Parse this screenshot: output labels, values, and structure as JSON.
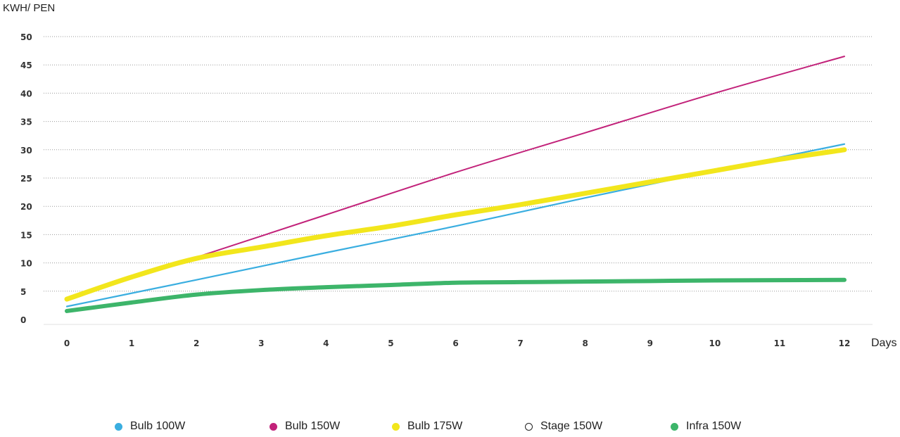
{
  "chart_data": {
    "type": "line",
    "ylabel": "KWH/ PEN",
    "xlabel": "Days",
    "ylim": [
      0,
      50
    ],
    "xlim": [
      0,
      12
    ],
    "y_ticks": [
      "0",
      "5",
      "10",
      "15",
      "20",
      "25",
      "30",
      "35",
      "40",
      "45",
      "50"
    ],
    "x_ticks": [
      "0",
      "1",
      "2",
      "3",
      "4",
      "5",
      "6",
      "7",
      "8",
      "9",
      "10",
      "11",
      "12"
    ],
    "grid": "horizontal dotted",
    "legend_position": "bottom",
    "series": [
      {
        "name": "Bulb 100W",
        "color": "#3aaee0",
        "x": [
          0,
          2,
          4,
          6,
          8,
          10,
          12
        ],
        "values": [
          2.3,
          7,
          11.8,
          16.5,
          21.5,
          26.3,
          31
        ]
      },
      {
        "name": "Bulb 150W",
        "color": "#c2227a",
        "x": [
          0,
          2,
          4,
          6,
          8,
          10,
          12
        ],
        "values": [
          3.5,
          11,
          18.5,
          26,
          33,
          40,
          46.5
        ]
      },
      {
        "name": "Bulb 175W",
        "color": "#f2e61c",
        "x": [
          0,
          1,
          2,
          3,
          4,
          5,
          6,
          7,
          8,
          9,
          10,
          11,
          12
        ],
        "values": [
          3.6,
          7.5,
          10.8,
          12.8,
          14.8,
          16.5,
          18.5,
          20.3,
          22.3,
          24.3,
          26.3,
          28.3,
          30
        ]
      },
      {
        "name": "Stage 150W",
        "color": "#ffffff",
        "values": []
      },
      {
        "name": "Infra 150W",
        "color": "#3db56a",
        "x": [
          0,
          1,
          2,
          3,
          4,
          5,
          6,
          7,
          8,
          9,
          10,
          11,
          12
        ],
        "values": [
          1.5,
          3,
          4.4,
          5.2,
          5.7,
          6.1,
          6.5,
          6.6,
          6.7,
          6.8,
          6.9,
          6.95,
          7
        ]
      }
    ]
  }
}
